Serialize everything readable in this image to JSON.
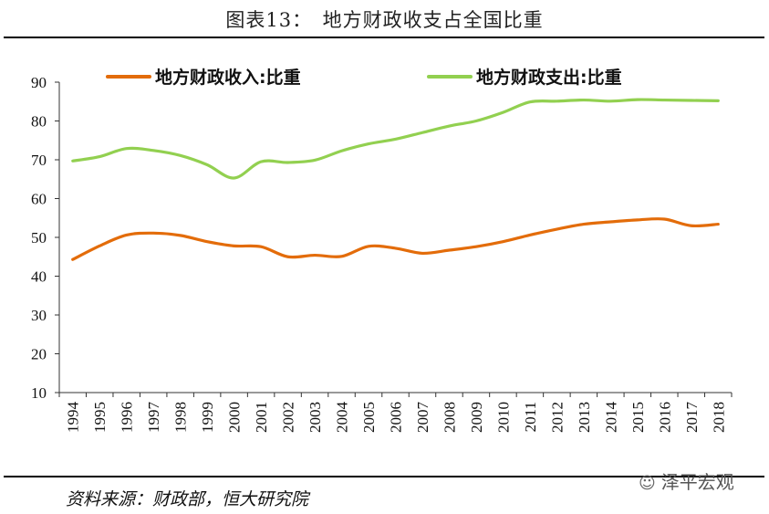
{
  "figure_title": "图表13：　地方财政收支占全国比重",
  "source": "资料来源：财政部，恒大研究院",
  "watermark": "泽平宏观",
  "chart_data": {
    "type": "line",
    "title": "图表13：　地方财政收支占全国比重",
    "xlabel": "",
    "ylabel": "",
    "ylim": [
      10,
      90
    ],
    "yticks": [
      10,
      20,
      30,
      40,
      50,
      60,
      70,
      80,
      90
    ],
    "grid": false,
    "legend_position": "top",
    "categories": [
      "1994",
      "1995",
      "1996",
      "1997",
      "1998",
      "1999",
      "2000",
      "2001",
      "2002",
      "2003",
      "2004",
      "2005",
      "2006",
      "2007",
      "2008",
      "2009",
      "2010",
      "2011",
      "2012",
      "2013",
      "2014",
      "2015",
      "2016",
      "2017",
      "2018"
    ],
    "series": [
      {
        "name": "地方财政收入:比重",
        "color": "#e36c0a",
        "values": [
          44.3,
          47.8,
          50.6,
          51.1,
          50.5,
          48.9,
          47.8,
          47.6,
          45.0,
          45.4,
          45.1,
          47.7,
          47.2,
          45.9,
          46.7,
          47.6,
          48.9,
          50.6,
          52.1,
          53.4,
          54.0,
          54.5,
          54.7,
          53.0,
          53.4
        ]
      },
      {
        "name": "地方财政支出:比重",
        "color": "#92d050",
        "values": [
          69.7,
          70.8,
          72.9,
          72.4,
          71.1,
          68.7,
          65.3,
          69.5,
          69.3,
          69.9,
          72.3,
          74.1,
          75.3,
          77.0,
          78.7,
          80.0,
          82.2,
          84.9,
          85.1,
          85.4,
          85.1,
          85.5,
          85.4,
          85.3,
          85.2
        ]
      }
    ]
  }
}
